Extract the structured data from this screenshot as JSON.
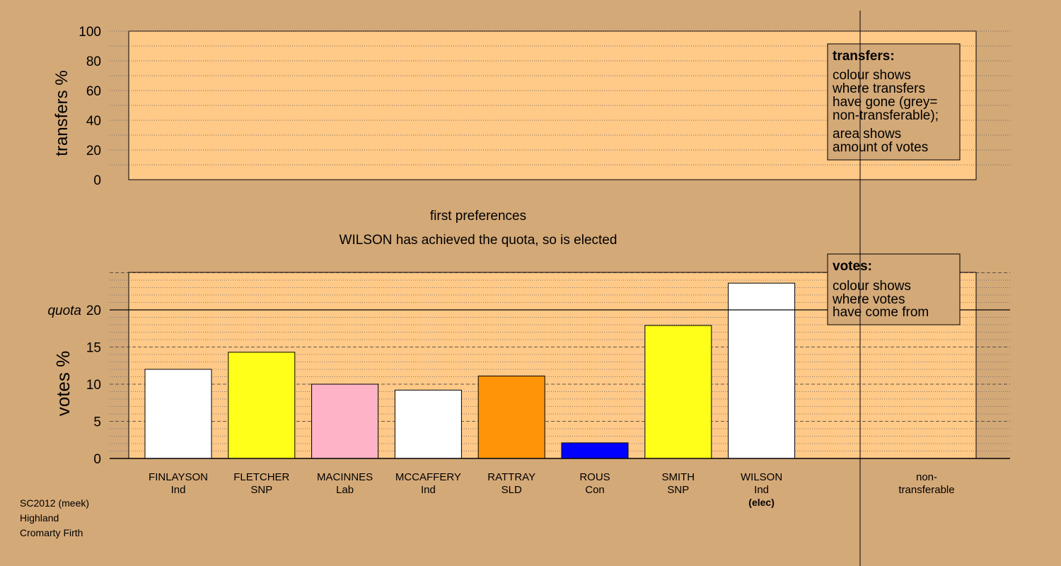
{
  "colors": {
    "background": "#d4a978",
    "plot_bg": "#ffc988",
    "quota_line": "#000000"
  },
  "transfers_panel": {
    "ylabel": "transfers %",
    "yticks": [
      "100",
      "80",
      "60",
      "40",
      "20",
      "0"
    ],
    "legend": {
      "title": "transfers:",
      "lines": [
        "colour shows",
        "where transfers",
        "have gone (grey=",
        "non-transferable);",
        "area shows",
        "amount of votes"
      ]
    }
  },
  "captions": {
    "line1": "first preferences",
    "line2": "WILSON has achieved the quota, so is elected"
  },
  "votes_panel": {
    "legend": {
      "title": "votes:",
      "lines": [
        "colour shows",
        "where votes",
        "have come from"
      ]
    }
  },
  "footer": {
    "line1": "SC2012 (meek)",
    "line2": "Highland",
    "line3": "Cromarty Firth"
  },
  "chart_data": {
    "type": "bar",
    "ylabel": "votes %",
    "ylim": [
      0,
      25
    ],
    "yticks": [
      0,
      5,
      10,
      15,
      20
    ],
    "quota": 20,
    "quota_label": "quota",
    "categories": [
      "FINLAYSON",
      "FLETCHER",
      "MACINNES",
      "MCCAFFERY",
      "RATTRAY",
      "ROUS",
      "SMITH",
      "WILSON"
    ],
    "parties": [
      "Ind",
      "SNP",
      "Lab",
      "Ind",
      "SLD",
      "Con",
      "SNP",
      "Ind"
    ],
    "status": [
      "",
      "",
      "",
      "",
      "",
      "",
      "",
      "(elec)"
    ],
    "values": [
      12.0,
      14.3,
      10.0,
      9.2,
      11.1,
      2.1,
      17.9,
      23.6
    ],
    "bar_colors": [
      "#ffffff",
      "#ffff19",
      "#ffb3c6",
      "#ffffff",
      "#ff9408",
      "#0000ff",
      "#ffff19",
      "#ffffff"
    ],
    "nontransferable_label": [
      "non-",
      "transferable"
    ]
  }
}
